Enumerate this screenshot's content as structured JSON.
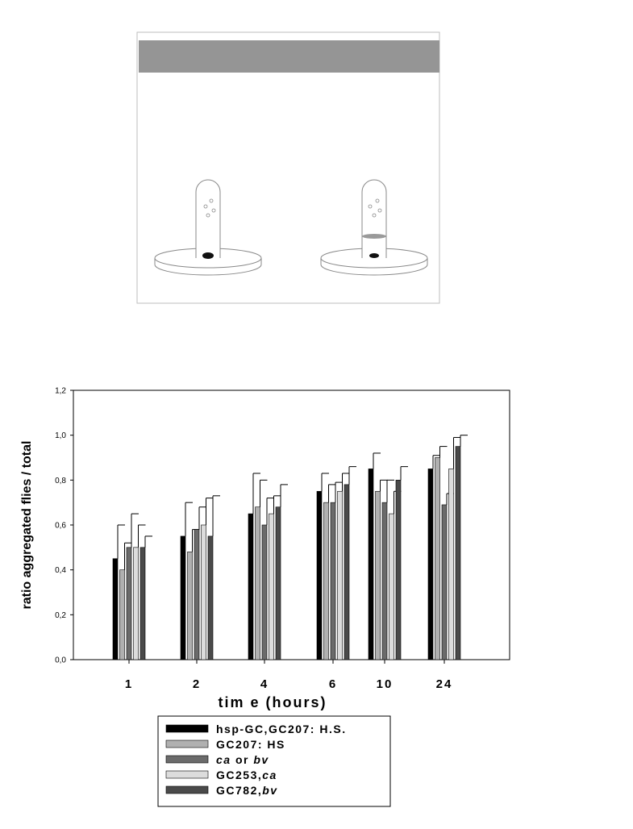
{
  "illustration": {
    "tube_left": "tube-with-flies-left",
    "tube_right": "tube-with-flies-right"
  },
  "chart_data": {
    "type": "bar",
    "title": "",
    "xlabel": "tim e (hours)",
    "ylabel": "ratio aggregated flies / total",
    "categories": [
      "1",
      "2",
      "4",
      "6",
      "10",
      "24"
    ],
    "ylim": [
      0,
      1.2
    ],
    "yticks": [
      "0,0",
      "0,2",
      "0,4",
      "0,6",
      "0,8",
      "1,0",
      "1,2"
    ],
    "grid": false,
    "legend_position": "bottom",
    "series": [
      {
        "name_html": "hsp-GC,GC207: H.S.",
        "name": "hsp-GC,GC207: H.S.",
        "color": "#000000",
        "values": [
          0.45,
          0.55,
          0.65,
          0.75,
          0.85,
          0.85
        ],
        "errors": [
          0.15,
          0.15,
          0.18,
          0.08,
          0.07,
          0.06
        ]
      },
      {
        "name": "GC207: HS",
        "color": "#b0b0b0",
        "values": [
          0.4,
          0.48,
          0.68,
          0.7,
          0.75,
          0.9
        ],
        "errors": [
          0.12,
          0.1,
          0.12,
          0.08,
          0.05,
          0.05
        ]
      },
      {
        "name": "ca or bv",
        "color": "#6b6b6b",
        "values": [
          0.5,
          0.58,
          0.6,
          0.7,
          0.7,
          0.69
        ],
        "errors": [
          0.15,
          0.1,
          0.12,
          0.09,
          0.1,
          0.05
        ]
      },
      {
        "name": "GC253,ca",
        "color": "#dcdcdc",
        "values": [
          0.5,
          0.6,
          0.65,
          0.75,
          0.65,
          0.85
        ],
        "errors": [
          0.1,
          0.12,
          0.08,
          0.08,
          0.1,
          0.14
        ]
      },
      {
        "name": "GC782,bv",
        "color": "#4a4a4a",
        "values": [
          0.5,
          0.55,
          0.68,
          0.78,
          0.8,
          0.95
        ],
        "errors": [
          0.05,
          0.18,
          0.1,
          0.08,
          0.06,
          0.05
        ]
      }
    ]
  }
}
